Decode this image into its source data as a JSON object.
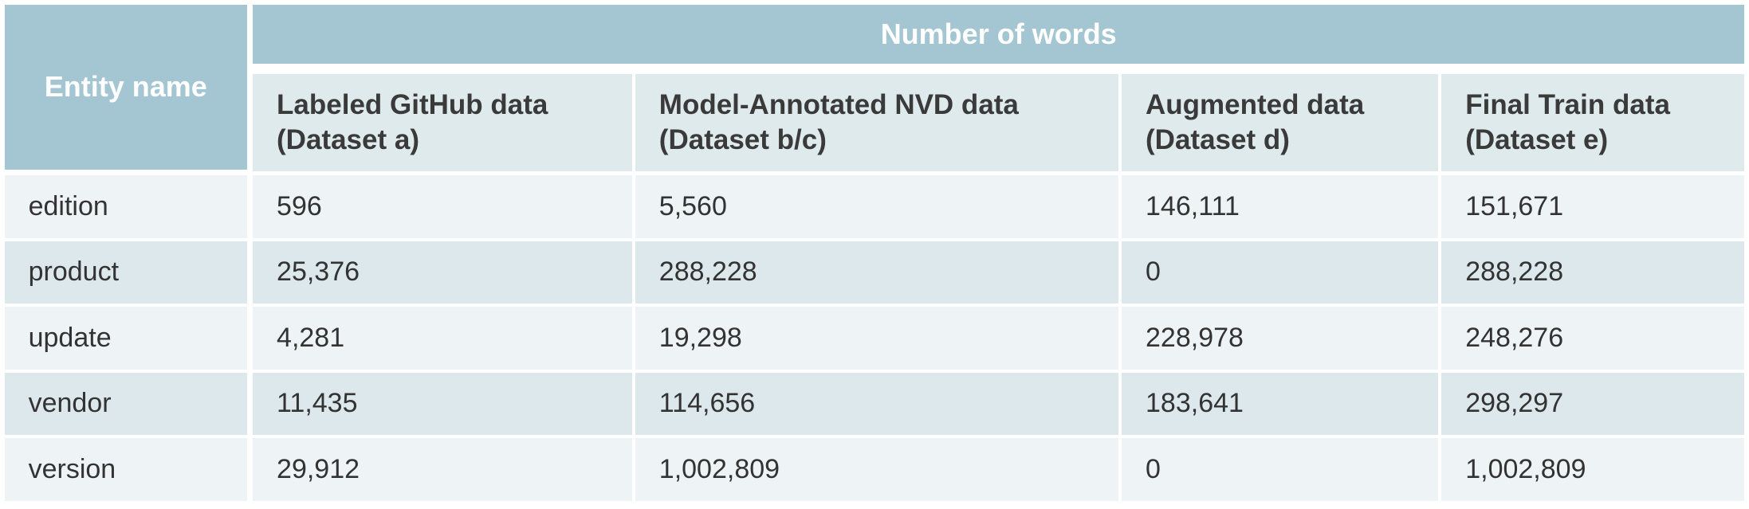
{
  "table": {
    "row_header": "Entity name",
    "group_header": "Number of words",
    "columns": [
      [
        "Labeled GitHub data",
        "(Dataset a)"
      ],
      [
        "Model-Annotated NVD data",
        "(Dataset b/c)"
      ],
      [
        "Augmented data",
        "(Dataset d)"
      ],
      [
        "Final Train data",
        "(Dataset e)"
      ]
    ],
    "rows": [
      [
        "edition",
        "596",
        "5,560",
        "146,111",
        "151,671"
      ],
      [
        "product",
        "25,376",
        "288,228",
        "0",
        "288,228"
      ],
      [
        "update",
        "4,281",
        "19,298",
        "228,978",
        "248,276"
      ],
      [
        "vendor",
        "11,435",
        "114,656",
        "183,641",
        "298,297"
      ],
      [
        "version",
        "29,912",
        "1,002,809",
        "0",
        "1,002,809"
      ]
    ]
  }
}
